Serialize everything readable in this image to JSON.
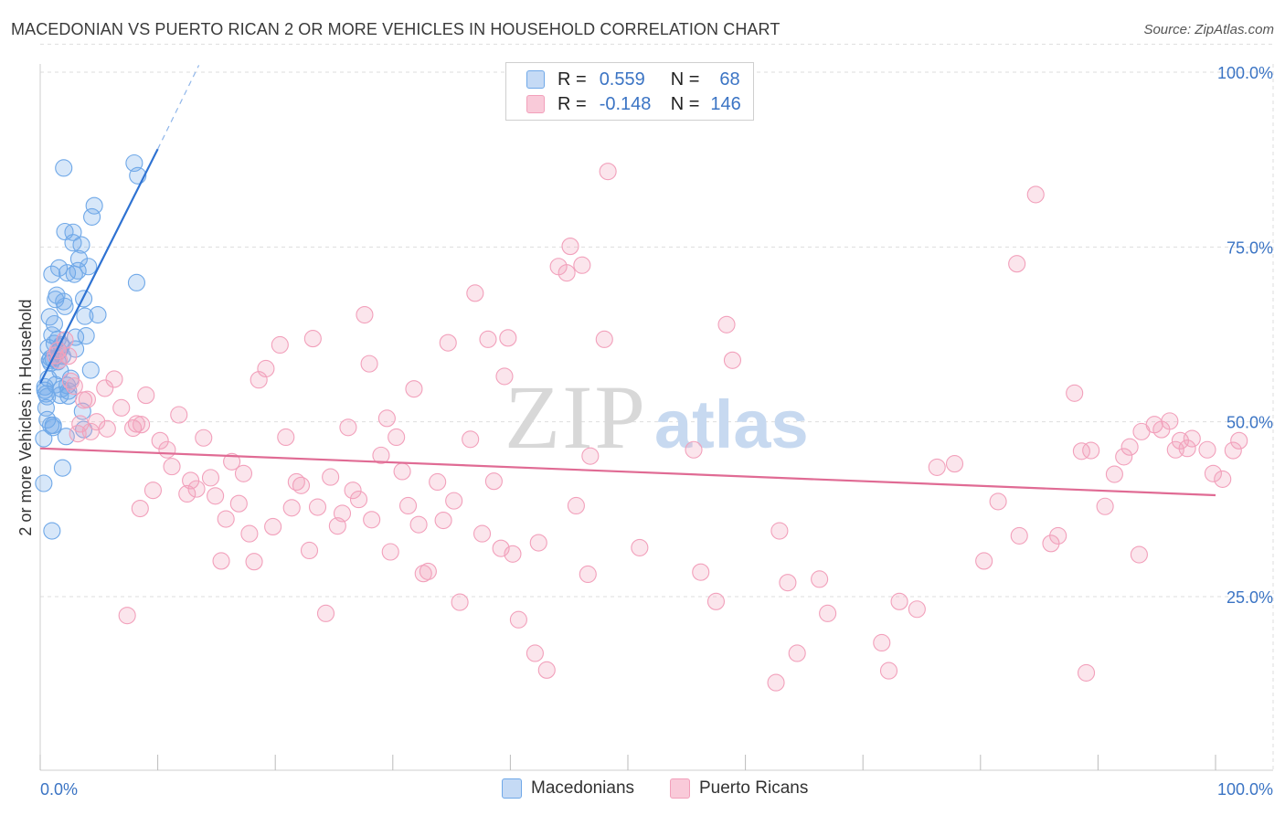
{
  "title": "MACEDONIAN VS PUERTO RICAN 2 OR MORE VEHICLES IN HOUSEHOLD CORRELATION CHART",
  "source": "Source: ZipAtlas.com",
  "watermark": {
    "zip": "ZIP",
    "atlas": "atlas"
  },
  "legend": {
    "rows": [
      {
        "r_label": "R =",
        "r_value": "0.559",
        "n_label": "N =",
        "n_value": "68",
        "color": "#6fa8e8"
      },
      {
        "r_label": "R =",
        "r_value": "-0.148",
        "n_label": "N =",
        "n_value": "146",
        "color": "#f2a0bb"
      }
    ]
  },
  "bottom_legend": [
    {
      "label": "Macedonians",
      "color": "#6fa8e8"
    },
    {
      "label": "Puerto Ricans",
      "color": "#f2a0bb"
    }
  ],
  "chart_data": {
    "type": "scatter",
    "title": "MACEDONIAN VS PUERTO RICAN 2 OR MORE VEHICLES IN HOUSEHOLD CORRELATION CHART",
    "xlabel": "",
    "ylabel": "2 or more Vehicles in Household",
    "xlim": [
      0,
      100
    ],
    "ylim": [
      0,
      104
    ],
    "x_tick_labels": [
      "0.0%",
      "100.0%"
    ],
    "y_tick_labels": [
      "25.0%",
      "50.0%",
      "75.0%",
      "100.0%"
    ],
    "y_ticks": [
      25,
      50,
      75,
      100
    ],
    "grid": true,
    "legend_position": "top-center",
    "series": [
      {
        "name": "Macedonians",
        "color": "#6fa8e8",
        "trend": {
          "x0": 0,
          "y0": 55.5,
          "x1": 10,
          "y1": 89.0,
          "dash_to_x": 13.5,
          "dash_to_y": 101.0
        },
        "points": [
          [
            0.3,
            41.2
          ],
          [
            0.3,
            47.6
          ],
          [
            0.4,
            54.5
          ],
          [
            0.5,
            52.0
          ],
          [
            0.5,
            54.0
          ],
          [
            0.6,
            53.6
          ],
          [
            0.6,
            50.3
          ],
          [
            0.7,
            56.2
          ],
          [
            0.7,
            60.6
          ],
          [
            0.8,
            65.0
          ],
          [
            0.8,
            58.8
          ],
          [
            0.9,
            49.5
          ],
          [
            0.9,
            58.4
          ],
          [
            1.0,
            71.1
          ],
          [
            1.0,
            62.4
          ],
          [
            1.1,
            59.0
          ],
          [
            1.1,
            49.2
          ],
          [
            1.2,
            61.2
          ],
          [
            1.2,
            64.0
          ],
          [
            1.3,
            55.3
          ],
          [
            1.3,
            67.5
          ],
          [
            1.4,
            68.1
          ],
          [
            1.5,
            58.6
          ],
          [
            1.6,
            72.0
          ],
          [
            1.7,
            53.8
          ],
          [
            1.7,
            57.3
          ],
          [
            1.8,
            61.0
          ],
          [
            1.8,
            54.7
          ],
          [
            1.9,
            59.4
          ],
          [
            1.8,
            60.8
          ],
          [
            1.9,
            43.4
          ],
          [
            2.0,
            86.3
          ],
          [
            2.0,
            67.2
          ],
          [
            2.1,
            66.5
          ],
          [
            2.1,
            77.2
          ],
          [
            2.2,
            47.9
          ],
          [
            2.3,
            71.3
          ],
          [
            2.4,
            53.7
          ],
          [
            2.4,
            54.4
          ],
          [
            2.6,
            56.2
          ],
          [
            2.8,
            75.6
          ],
          [
            2.8,
            77.1
          ],
          [
            2.9,
            71.1
          ],
          [
            3.0,
            60.4
          ],
          [
            3.0,
            62.1
          ],
          [
            3.2,
            71.6
          ],
          [
            3.3,
            73.3
          ],
          [
            3.5,
            75.3
          ],
          [
            3.6,
            51.5
          ],
          [
            3.7,
            48.9
          ],
          [
            3.7,
            67.6
          ],
          [
            3.8,
            65.1
          ],
          [
            3.9,
            62.3
          ],
          [
            4.1,
            72.2
          ],
          [
            4.3,
            57.4
          ],
          [
            4.4,
            79.3
          ],
          [
            4.6,
            80.9
          ],
          [
            4.9,
            65.3
          ],
          [
            8.0,
            87.0
          ],
          [
            8.2,
            69.9
          ],
          [
            8.3,
            85.2
          ],
          [
            1.0,
            34.4
          ],
          [
            0.4,
            55.0
          ],
          [
            0.9,
            59.1
          ],
          [
            1.5,
            61.8
          ],
          [
            2.3,
            55.2
          ],
          [
            1.1,
            49.5
          ],
          [
            1.6,
            60.1
          ]
        ]
      },
      {
        "name": "Puerto Ricans",
        "color": "#f2a0bb",
        "trend": {
          "x0": 0,
          "y0": 46.2,
          "x1": 100,
          "y1": 39.5
        },
        "points": [
          [
            1.3,
            59.5
          ],
          [
            1.5,
            60.2
          ],
          [
            1.6,
            58.8
          ],
          [
            2.1,
            61.7
          ],
          [
            2.4,
            59.4
          ],
          [
            2.6,
            55.8
          ],
          [
            2.9,
            55.1
          ],
          [
            3.2,
            48.3
          ],
          [
            3.4,
            49.7
          ],
          [
            3.7,
            53.1
          ],
          [
            4.0,
            53.2
          ],
          [
            4.3,
            48.6
          ],
          [
            4.8,
            50.0
          ],
          [
            5.5,
            54.8
          ],
          [
            5.7,
            49.0
          ],
          [
            6.3,
            56.1
          ],
          [
            6.9,
            52.0
          ],
          [
            7.4,
            22.3
          ],
          [
            7.9,
            49.1
          ],
          [
            8.2,
            49.7
          ],
          [
            8.5,
            37.6
          ],
          [
            8.6,
            49.6
          ],
          [
            9.0,
            53.8
          ],
          [
            9.6,
            40.2
          ],
          [
            10.2,
            47.3
          ],
          [
            10.8,
            46.0
          ],
          [
            11.2,
            43.6
          ],
          [
            11.8,
            51.0
          ],
          [
            12.5,
            39.7
          ],
          [
            12.8,
            41.6
          ],
          [
            13.3,
            40.4
          ],
          [
            13.9,
            47.7
          ],
          [
            14.5,
            42.0
          ],
          [
            14.9,
            39.4
          ],
          [
            15.4,
            30.1
          ],
          [
            15.8,
            36.1
          ],
          [
            16.3,
            44.3
          ],
          [
            16.9,
            38.3
          ],
          [
            17.3,
            42.6
          ],
          [
            17.8,
            34.0
          ],
          [
            18.2,
            30.0
          ],
          [
            18.6,
            56.0
          ],
          [
            19.2,
            57.6
          ],
          [
            19.8,
            35.0
          ],
          [
            20.4,
            61.0
          ],
          [
            20.9,
            47.8
          ],
          [
            21.4,
            37.7
          ],
          [
            21.8,
            41.4
          ],
          [
            22.2,
            40.9
          ],
          [
            22.9,
            31.6
          ],
          [
            23.2,
            61.9
          ],
          [
            23.6,
            37.8
          ],
          [
            24.3,
            22.6
          ],
          [
            24.7,
            42.1
          ],
          [
            25.3,
            35.1
          ],
          [
            25.7,
            36.9
          ],
          [
            26.2,
            49.2
          ],
          [
            26.6,
            40.2
          ],
          [
            27.1,
            38.9
          ],
          [
            27.6,
            65.3
          ],
          [
            28.0,
            58.3
          ],
          [
            28.2,
            36.0
          ],
          [
            29.0,
            45.2
          ],
          [
            29.5,
            50.5
          ],
          [
            29.8,
            31.4
          ],
          [
            30.3,
            47.8
          ],
          [
            30.8,
            42.9
          ],
          [
            31.3,
            38.0
          ],
          [
            31.8,
            54.7
          ],
          [
            32.2,
            35.3
          ],
          [
            32.6,
            28.3
          ],
          [
            33.0,
            28.6
          ],
          [
            33.8,
            41.4
          ],
          [
            34.3,
            35.9
          ],
          [
            34.7,
            61.3
          ],
          [
            35.2,
            38.7
          ],
          [
            35.7,
            24.2
          ],
          [
            36.6,
            47.5
          ],
          [
            37.0,
            68.4
          ],
          [
            37.6,
            34.0
          ],
          [
            38.1,
            61.8
          ],
          [
            38.6,
            41.5
          ],
          [
            39.2,
            31.9
          ],
          [
            39.5,
            56.5
          ],
          [
            39.8,
            62.0
          ],
          [
            40.2,
            31.1
          ],
          [
            40.7,
            21.7
          ],
          [
            42.1,
            16.9
          ],
          [
            42.4,
            32.7
          ],
          [
            43.1,
            14.5
          ],
          [
            44.1,
            72.2
          ],
          [
            44.8,
            71.3
          ],
          [
            45.1,
            75.1
          ],
          [
            45.6,
            38.0
          ],
          [
            46.1,
            72.4
          ],
          [
            46.6,
            28.2
          ],
          [
            46.8,
            45.1
          ],
          [
            48.0,
            61.8
          ],
          [
            48.3,
            85.8
          ],
          [
            51.0,
            32.0
          ],
          [
            55.6,
            46.0
          ],
          [
            56.2,
            28.5
          ],
          [
            57.5,
            24.3
          ],
          [
            58.4,
            63.9
          ],
          [
            58.9,
            58.8
          ],
          [
            62.6,
            12.7
          ],
          [
            62.9,
            34.4
          ],
          [
            63.6,
            27.0
          ],
          [
            64.4,
            16.9
          ],
          [
            66.3,
            27.5
          ],
          [
            67.0,
            22.6
          ],
          [
            71.6,
            18.4
          ],
          [
            72.2,
            14.4
          ],
          [
            73.1,
            24.3
          ],
          [
            74.6,
            23.2
          ],
          [
            76.3,
            43.5
          ],
          [
            77.8,
            44.0
          ],
          [
            80.3,
            30.1
          ],
          [
            81.5,
            38.6
          ],
          [
            83.1,
            72.6
          ],
          [
            83.3,
            33.7
          ],
          [
            84.7,
            82.5
          ],
          [
            86.0,
            32.6
          ],
          [
            86.6,
            33.7
          ],
          [
            88.0,
            54.1
          ],
          [
            88.6,
            45.8
          ],
          [
            89.4,
            45.9
          ],
          [
            89.0,
            14.1
          ],
          [
            90.6,
            37.9
          ],
          [
            91.4,
            42.5
          ],
          [
            92.2,
            45.0
          ],
          [
            92.7,
            46.4
          ],
          [
            93.5,
            31.0
          ],
          [
            93.7,
            48.6
          ],
          [
            94.8,
            49.6
          ],
          [
            95.4,
            48.9
          ],
          [
            96.1,
            50.1
          ],
          [
            96.6,
            46.0
          ],
          [
            97.0,
            47.3
          ],
          [
            97.6,
            46.2
          ],
          [
            98.0,
            47.6
          ],
          [
            99.3,
            46.0
          ],
          [
            99.8,
            42.6
          ],
          [
            100.6,
            41.8
          ],
          [
            101.5,
            45.9
          ],
          [
            102.0,
            47.3
          ]
        ]
      }
    ]
  }
}
